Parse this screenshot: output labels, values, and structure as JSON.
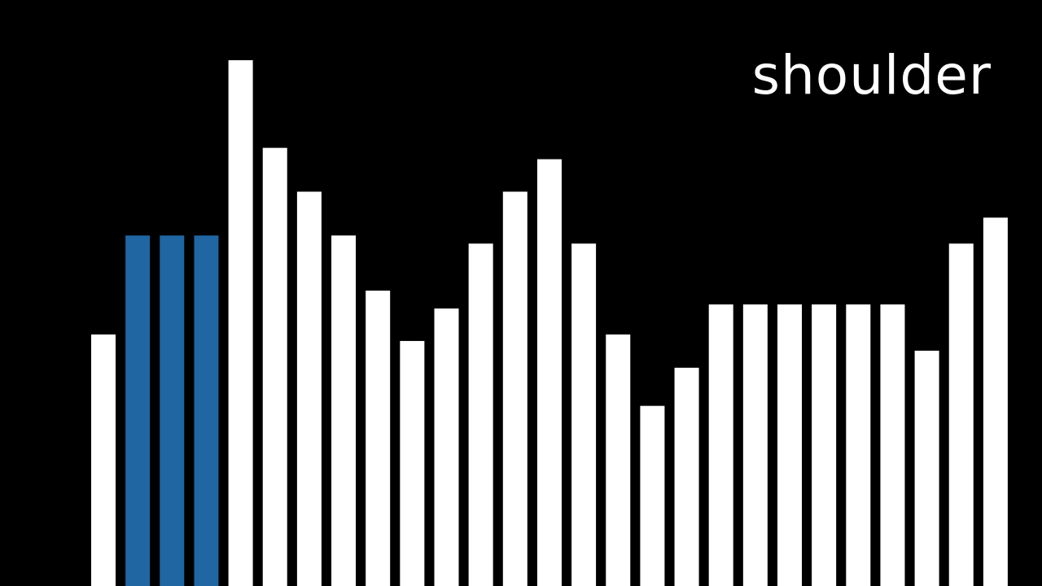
{
  "word": "shoulder",
  "colors": {
    "background": "#000000",
    "bar_default": "#ffffff",
    "bar_highlight": "#1f66a2"
  },
  "chart_data": {
    "type": "bar",
    "title": "",
    "xlabel": "",
    "ylabel": "",
    "ylim": [
      0,
      650
    ],
    "grid": false,
    "legend": "none",
    "values": [
      310,
      432,
      432,
      432,
      648,
      540,
      486,
      432,
      364,
      302,
      342,
      422,
      486,
      526,
      422,
      310,
      222,
      269,
      347,
      347,
      347,
      347,
      347,
      347,
      290,
      422,
      454
    ],
    "highlighted_indices": [
      1,
      2,
      3
    ]
  }
}
